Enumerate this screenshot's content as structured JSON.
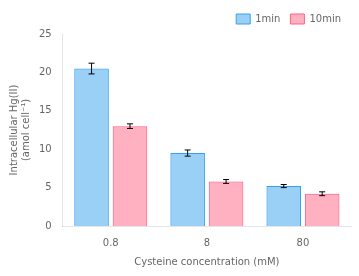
{
  "chart_data": {
    "type": "bar",
    "categories": [
      "0.8",
      "8",
      "80"
    ],
    "series": [
      {
        "name": "1min",
        "values": [
          20.5,
          9.5,
          5.2
        ],
        "errors": [
          0.7,
          0.4,
          0.2
        ]
      },
      {
        "name": "10min",
        "values": [
          13.0,
          5.8,
          4.2
        ],
        "errors": [
          0.3,
          0.25,
          0.25
        ]
      }
    ],
    "xlabel": "Cysteine concentration (mM)",
    "ylabel": [
      "Intracellular Hg(II)",
      "(amol cell⁻¹)"
    ],
    "ylim": [
      0,
      25
    ],
    "yticks": [
      0,
      5,
      10,
      15,
      20,
      25
    ],
    "grid": false,
    "legend": "upper right"
  }
}
